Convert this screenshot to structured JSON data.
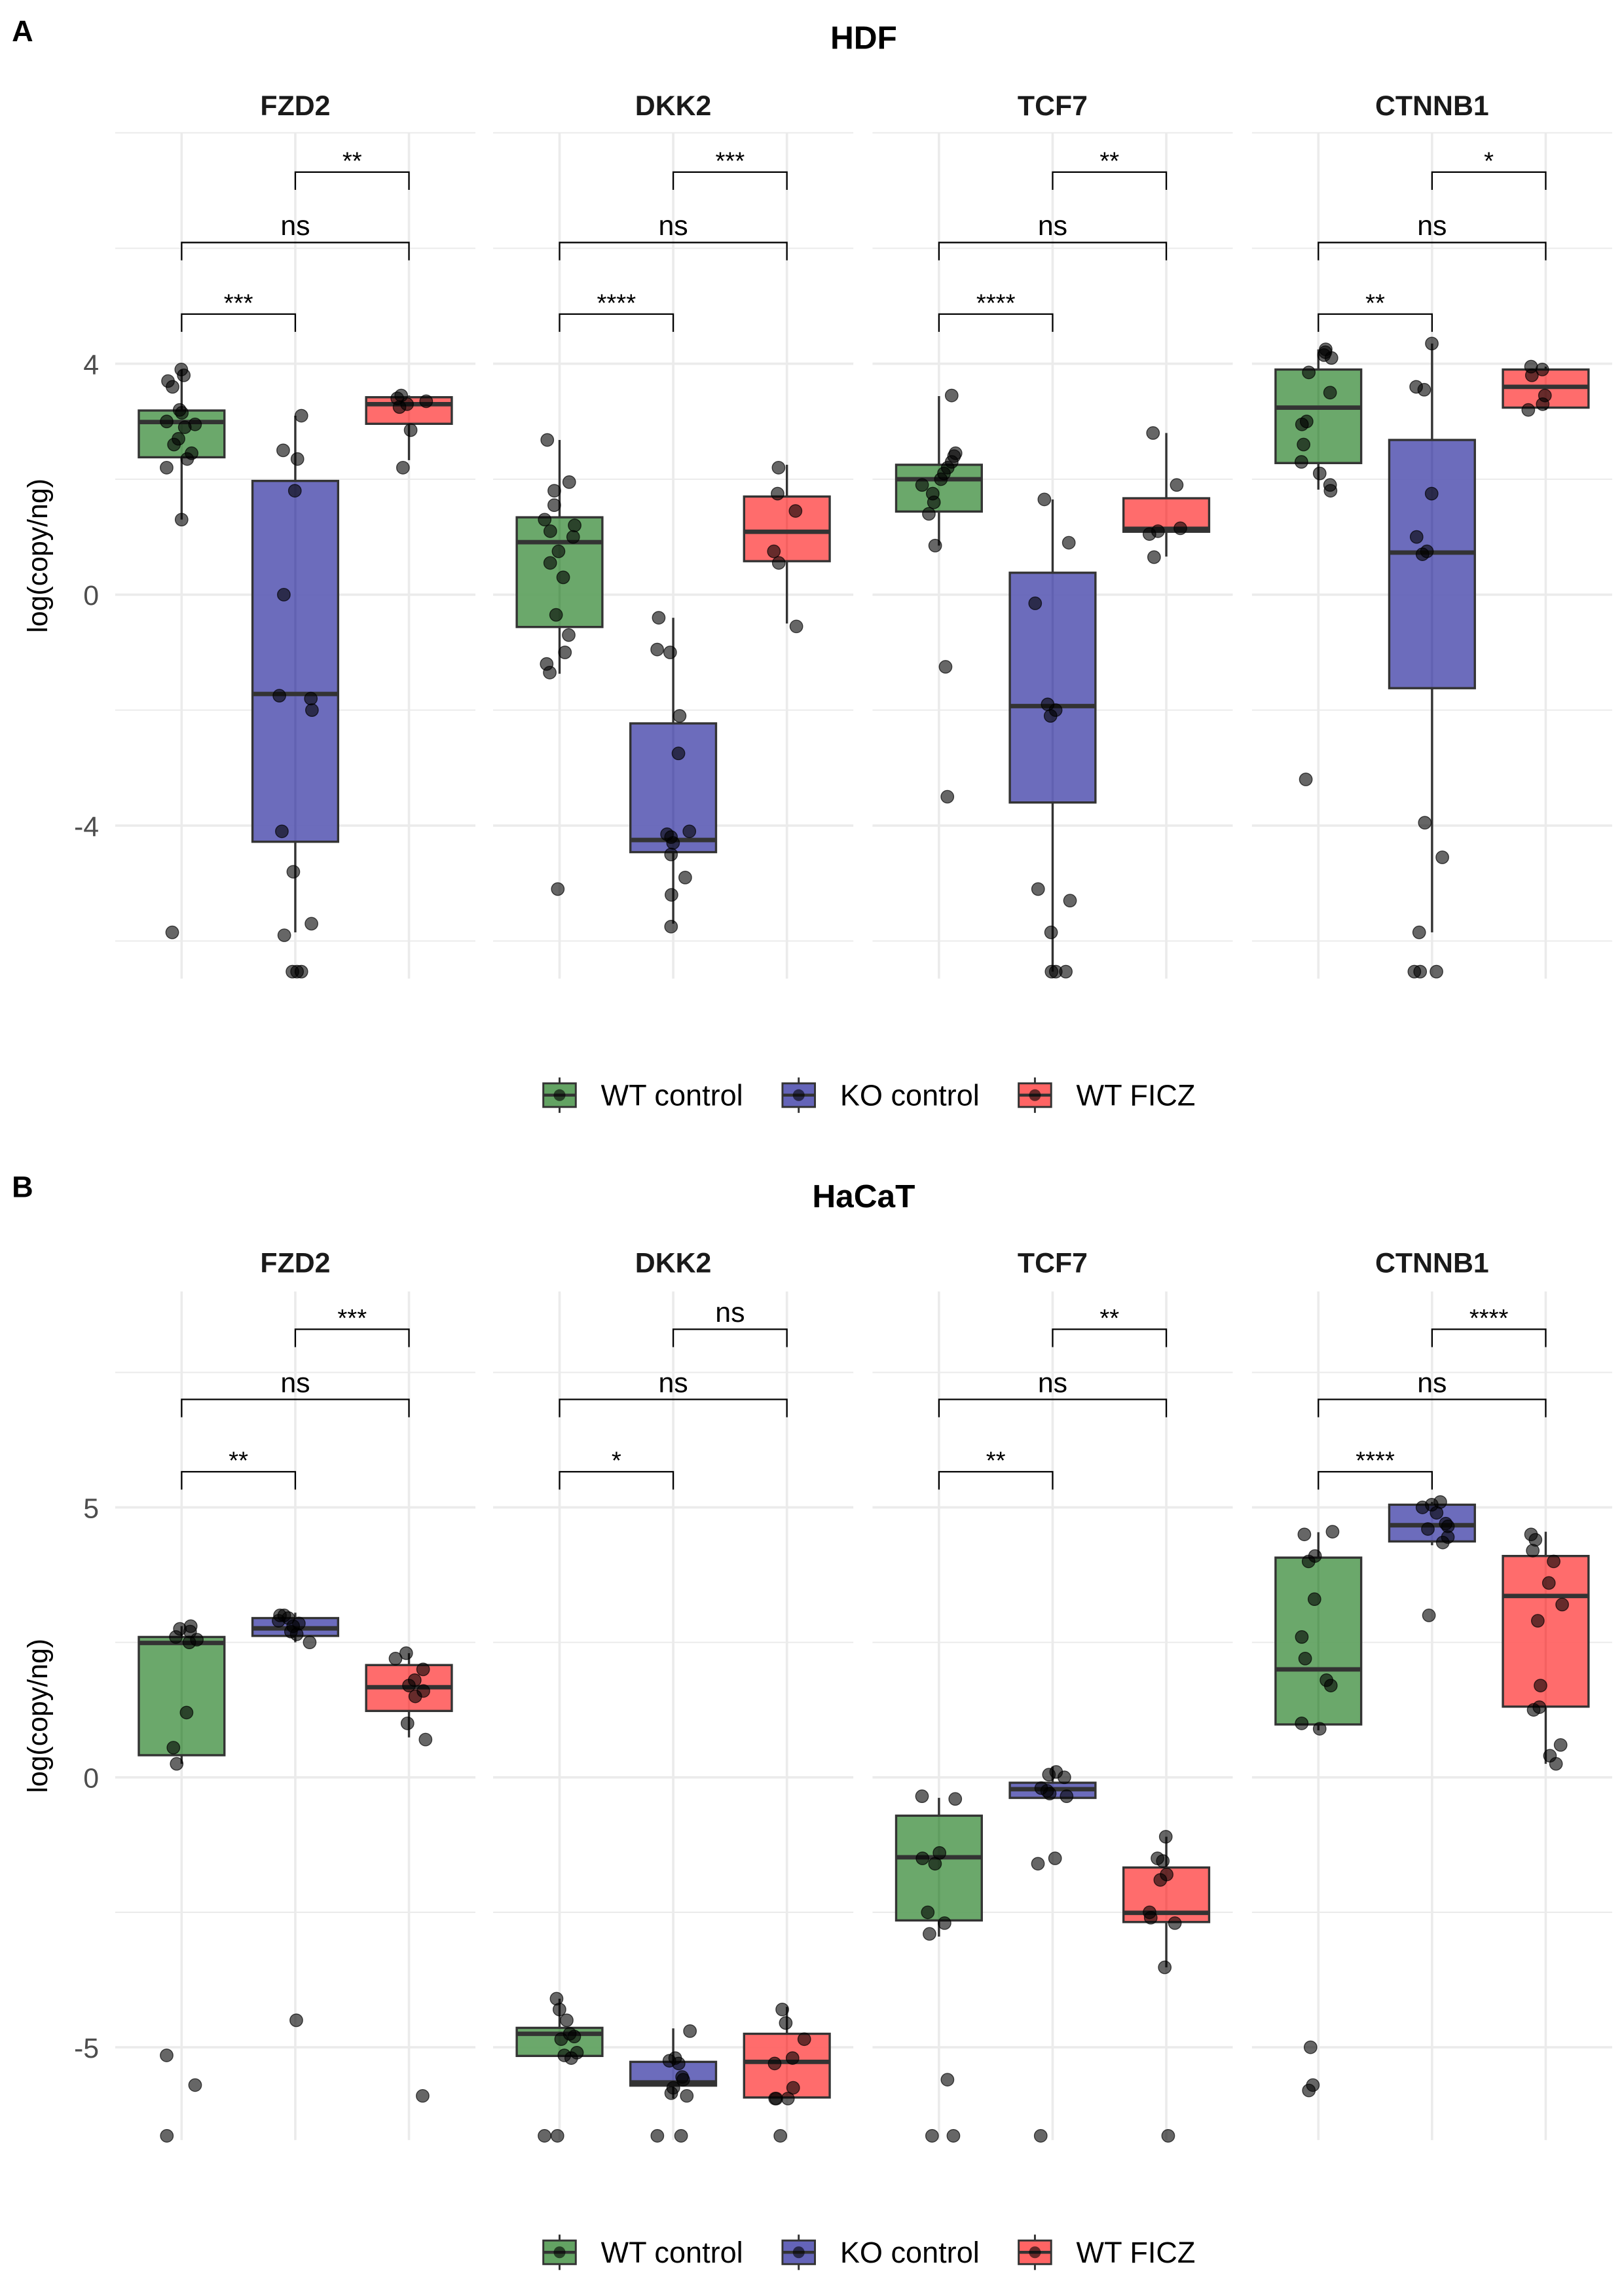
{
  "colors": {
    "WT control": "#63a363",
    "KO control": "#6464b8",
    "WT FICZ": "#ff6464"
  },
  "legend": [
    "WT control",
    "KO control",
    "WT FICZ"
  ],
  "chart_data": [
    {
      "type": "box",
      "panel_label": "A",
      "title": "HDF",
      "ylabel": "log(copy/ng)",
      "yticks": [
        -4,
        0,
        4
      ],
      "ylim": [
        -6.65,
        8.0
      ],
      "grid": true,
      "legend_position": "bottom",
      "groups": [
        "WT control",
        "KO control",
        "WT FICZ"
      ],
      "facets": [
        {
          "name": "FZD2",
          "significance": {
            "WT control vs KO control": "***",
            "WT control vs WT FICZ": "ns",
            "KO control vs WT FICZ": "**"
          },
          "boxes": [
            {
              "q1": 2.38,
              "median": 2.99,
              "q3": 3.19,
              "whisker_low": 1.3,
              "whisker_high": 3.9,
              "points": [
                3.9,
                3.8,
                3.7,
                3.6,
                3.2,
                3.15,
                3.0,
                2.95,
                2.9,
                2.7,
                2.6,
                2.45,
                2.35,
                2.2,
                1.3,
                -5.85
              ]
            },
            {
              "q1": -4.28,
              "median": -1.72,
              "q3": 1.97,
              "whisker_low": -5.85,
              "whisker_high": 3.1,
              "points": [
                3.1,
                2.5,
                2.35,
                1.8,
                0,
                -1.75,
                -1.8,
                -2.0,
                -4.1,
                -4.8,
                -5.7,
                -5.9,
                -6.53,
                -6.53,
                -6.53
              ]
            },
            {
              "q1": 2.96,
              "median": 3.3,
              "q3": 3.42,
              "whisker_low": 2.33,
              "whisker_high": 3.45,
              "points": [
                3.45,
                3.4,
                3.35,
                3.3,
                3.25,
                2.85,
                2.2
              ]
            }
          ]
        },
        {
          "name": "DKK2",
          "significance": {
            "WT control vs KO control": "****",
            "WT control vs WT FICZ": "ns",
            "KO control vs WT FICZ": "***"
          },
          "boxes": [
            {
              "q1": -0.56,
              "median": 0.91,
              "q3": 1.34,
              "whisker_low": -1.37,
              "whisker_high": 2.68,
              "points": [
                2.68,
                1.95,
                1.8,
                1.55,
                1.3,
                1.2,
                1.1,
                1.0,
                0.75,
                0.55,
                0.3,
                -0.35,
                -0.7,
                -1.0,
                -1.2,
                -1.35,
                -5.1
              ]
            },
            {
              "q1": -4.46,
              "median": -4.25,
              "q3": -2.23,
              "whisker_low": -5.7,
              "whisker_high": -0.4,
              "points": [
                -0.4,
                -0.95,
                -1.0,
                -2.1,
                -2.75,
                -4.1,
                -4.15,
                -4.2,
                -4.3,
                -4.5,
                -4.9,
                -5.2,
                -5.75
              ]
            },
            {
              "q1": 0.58,
              "median": 1.09,
              "q3": 1.7,
              "whisker_low": -0.5,
              "whisker_high": 2.25,
              "points": [
                2.2,
                1.75,
                1.45,
                0.75,
                0.55,
                -0.55
              ]
            }
          ]
        },
        {
          "name": "TCF7",
          "significance": {
            "WT control vs KO control": "****",
            "WT control vs WT FICZ": "ns",
            "KO control vs WT FICZ": "**"
          },
          "boxes": [
            {
              "q1": 1.44,
              "median": 2.0,
              "q3": 2.25,
              "whisker_low": 0.85,
              "whisker_high": 3.44,
              "points": [
                3.45,
                2.45,
                2.4,
                2.3,
                2.2,
                2.1,
                2.0,
                1.9,
                1.75,
                1.6,
                1.4,
                0.85,
                -1.25,
                -3.5
              ]
            },
            {
              "q1": -3.6,
              "median": -1.93,
              "q3": 0.38,
              "whisker_low": -6.53,
              "whisker_high": 1.65,
              "points": [
                1.65,
                0.9,
                -0.15,
                -1.9,
                -2.0,
                -2.1,
                -5.1,
                -5.3,
                -5.85,
                -6.53,
                -6.53,
                -6.53
              ]
            },
            {
              "q1": 1.09,
              "median": 1.14,
              "q3": 1.67,
              "whisker_low": 0.66,
              "whisker_high": 2.8,
              "points": [
                2.8,
                1.9,
                1.15,
                1.1,
                1.05,
                0.65
              ]
            }
          ]
        },
        {
          "name": "CTNNB1",
          "significance": {
            "WT control vs KO control": "**",
            "WT control vs WT FICZ": "ns",
            "KO control vs WT FICZ": "*"
          },
          "boxes": [
            {
              "q1": 2.28,
              "median": 3.24,
              "q3": 3.9,
              "whisker_low": 1.82,
              "whisker_high": 4.25,
              "points": [
                4.25,
                4.2,
                4.15,
                4.1,
                3.85,
                3.5,
                3.0,
                2.95,
                2.6,
                2.3,
                2.1,
                1.9,
                1.8,
                -3.2
              ]
            },
            {
              "q1": -1.62,
              "median": 0.73,
              "q3": 2.68,
              "whisker_low": -5.85,
              "whisker_high": 4.35,
              "points": [
                4.35,
                3.6,
                3.55,
                1.75,
                1.0,
                0.75,
                0.7,
                -3.95,
                -4.55,
                -5.85,
                -6.53,
                -6.53,
                -6.53
              ]
            },
            {
              "q1": 3.24,
              "median": 3.6,
              "q3": 3.9,
              "whisker_low": 3.2,
              "whisker_high": 3.95,
              "points": [
                3.95,
                3.9,
                3.8,
                3.45,
                3.3,
                3.2
              ]
            }
          ]
        }
      ]
    },
    {
      "type": "box",
      "panel_label": "B",
      "title": "HaCaT",
      "ylabel": "log(copy/ng)",
      "yticks": [
        -5,
        0,
        5
      ],
      "ylim": [
        -6.72,
        9.0
      ],
      "grid": true,
      "legend_position": "bottom",
      "groups": [
        "WT control",
        "KO control",
        "WT FICZ"
      ],
      "facets": [
        {
          "name": "FZD2",
          "significance": {
            "WT control vs KO control": "**",
            "WT control vs WT FICZ": "ns",
            "KO control vs WT FICZ": "***"
          },
          "boxes": [
            {
              "q1": 0.41,
              "median": 2.49,
              "q3": 2.6,
              "whisker_low": 0.25,
              "whisker_high": 2.8,
              "points": [
                2.8,
                2.75,
                2.7,
                2.6,
                2.55,
                2.5,
                1.2,
                0.55,
                0.25,
                -5.15,
                -5.7,
                -6.64
              ]
            },
            {
              "q1": 2.62,
              "median": 2.76,
              "q3": 2.95,
              "whisker_low": 2.5,
              "whisker_high": 3.05,
              "points": [
                3.0,
                3.0,
                2.95,
                2.9,
                2.85,
                2.8,
                2.7,
                2.65,
                2.5,
                -4.5
              ]
            },
            {
              "q1": 1.23,
              "median": 1.67,
              "q3": 2.08,
              "whisker_low": 0.74,
              "whisker_high": 2.3,
              "points": [
                2.3,
                2.2,
                2.0,
                1.8,
                1.7,
                1.6,
                1.5,
                1.0,
                0.7,
                -5.9
              ]
            }
          ]
        },
        {
          "name": "DKK2",
          "significance": {
            "WT control vs KO control": "*",
            "WT control vs WT FICZ": "ns",
            "KO control vs WT FICZ": "ns"
          },
          "boxes": [
            {
              "q1": -5.16,
              "median": -4.75,
              "q3": -4.64,
              "whisker_low": -5.16,
              "whisker_high": -4.1,
              "points": [
                -4.1,
                -4.3,
                -4.5,
                -4.75,
                -4.8,
                -4.85,
                -5.1,
                -5.15,
                -5.2,
                -6.64,
                -6.64
              ]
            },
            {
              "q1": -5.71,
              "median": -5.65,
              "q3": -5.27,
              "whisker_low": -5.95,
              "whisker_high": -4.65,
              "points": [
                -4.7,
                -5.2,
                -5.3,
                -5.25,
                -5.55,
                -5.6,
                -5.75,
                -5.85,
                -5.9,
                -6.64,
                -6.64
              ]
            },
            {
              "q1": -5.93,
              "median": -5.27,
              "q3": -4.75,
              "whisker_low": -5.93,
              "whisker_high": -4.25,
              "points": [
                -4.3,
                -4.55,
                -4.85,
                -5.2,
                -5.3,
                -5.75,
                -5.95,
                -5.95,
                -5.95,
                -6.64
              ]
            }
          ]
        },
        {
          "name": "TCF7",
          "significance": {
            "WT control vs KO control": "**",
            "WT control vs WT FICZ": "ns",
            "KO control vs WT FICZ": "**"
          },
          "boxes": [
            {
              "q1": -2.65,
              "median": -1.48,
              "q3": -0.71,
              "whisker_low": -2.95,
              "whisker_high": -0.38,
              "points": [
                -0.35,
                -0.4,
                -1.4,
                -1.5,
                -1.6,
                -2.5,
                -2.7,
                -2.9,
                -5.6,
                -6.64,
                -6.64
              ]
            },
            {
              "q1": -0.38,
              "median": -0.22,
              "q3": -0.1,
              "whisker_low": -0.38,
              "whisker_high": 0.2,
              "points": [
                0.1,
                0.05,
                0,
                -0.2,
                -0.25,
                -0.3,
                -0.35,
                -1.5,
                -1.6,
                -6.64
              ]
            },
            {
              "q1": -2.68,
              "median": -2.51,
              "q3": -1.67,
              "whisker_low": -3.52,
              "whisker_high": -1.1,
              "points": [
                -1.1,
                -1.5,
                -1.55,
                -1.8,
                -1.9,
                -2.5,
                -2.6,
                -2.7,
                -3.52,
                -6.64
              ]
            }
          ]
        },
        {
          "name": "CTNNB1",
          "significance": {
            "WT control vs KO control": "****",
            "WT control vs WT FICZ": "ns",
            "KO control vs WT FICZ": "****"
          },
          "boxes": [
            {
              "q1": 0.98,
              "median": 2.0,
              "q3": 4.07,
              "whisker_low": 0.87,
              "whisker_high": 4.54,
              "points": [
                4.55,
                4.5,
                4.1,
                4.0,
                3.3,
                2.6,
                2.2,
                1.8,
                1.7,
                1.0,
                0.9,
                -5.0,
                -5.7,
                -5.8
              ]
            },
            {
              "q1": 4.37,
              "median": 4.67,
              "q3": 5.05,
              "whisker_low": 4.3,
              "whisker_high": 5.1,
              "points": [
                5.1,
                5.05,
                5.0,
                4.9,
                4.7,
                4.65,
                4.6,
                4.45,
                4.35,
                3.0
              ]
            },
            {
              "q1": 1.31,
              "median": 3.36,
              "q3": 4.1,
              "whisker_low": 0.25,
              "whisker_high": 4.55,
              "points": [
                4.5,
                4.4,
                4.2,
                4.0,
                3.6,
                3.2,
                2.9,
                1.7,
                1.3,
                1.25,
                0.6,
                0.4,
                0.25
              ]
            }
          ]
        }
      ]
    }
  ]
}
